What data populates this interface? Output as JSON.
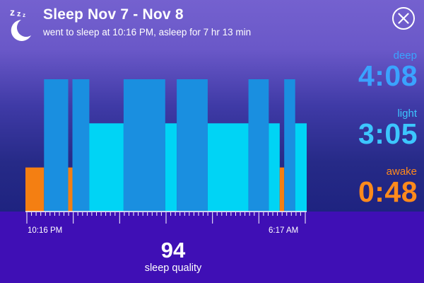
{
  "header": {
    "title": "Sleep Nov 7 - Nov 8",
    "subtitle": "went to sleep at 10:16 PM, asleep for 7 hr 13 min",
    "icon": "sleep-moon-zzz-icon",
    "close_icon": "close-circle-icon"
  },
  "stats": {
    "deep": {
      "label": "deep",
      "value": "4:08",
      "color": "#3aa3ff"
    },
    "light": {
      "label": "light",
      "value": "3:05",
      "color": "#3cc6ff"
    },
    "awake": {
      "label": "awake",
      "value": "0:48",
      "color": "#ff8a1c"
    }
  },
  "timeline": {
    "start_label": "10:16 PM",
    "end_label": "6:17 AM"
  },
  "quality": {
    "score": "94",
    "label": "sleep quality"
  },
  "colors": {
    "deep": "#1a8fe0",
    "light": "#00d4f5",
    "awake": "#f47f12",
    "background_top": "#7461cf",
    "background_bottom": "#1e2380",
    "footer": "#3f0fb5"
  },
  "chart_data": {
    "type": "bar",
    "levels": {
      "awake": 1,
      "light": 2,
      "deep": 3
    },
    "x_range": [
      "10:16 PM",
      "6:17 AM"
    ],
    "segments": [
      {
        "start": 0.0,
        "end": 0.066,
        "stage": "awake"
      },
      {
        "start": 0.066,
        "end": 0.152,
        "stage": "deep"
      },
      {
        "start": 0.152,
        "end": 0.167,
        "stage": "awake"
      },
      {
        "start": 0.167,
        "end": 0.227,
        "stage": "deep"
      },
      {
        "start": 0.227,
        "end": 0.349,
        "stage": "light"
      },
      {
        "start": 0.349,
        "end": 0.497,
        "stage": "deep"
      },
      {
        "start": 0.497,
        "end": 0.538,
        "stage": "light"
      },
      {
        "start": 0.538,
        "end": 0.648,
        "stage": "deep"
      },
      {
        "start": 0.648,
        "end": 0.793,
        "stage": "light"
      },
      {
        "start": 0.793,
        "end": 0.865,
        "stage": "deep"
      },
      {
        "start": 0.865,
        "end": 0.904,
        "stage": "light"
      },
      {
        "start": 0.904,
        "end": 0.92,
        "stage": "awake"
      },
      {
        "start": 0.92,
        "end": 0.959,
        "stage": "deep"
      },
      {
        "start": 0.959,
        "end": 1.0,
        "stage": "light"
      }
    ]
  }
}
